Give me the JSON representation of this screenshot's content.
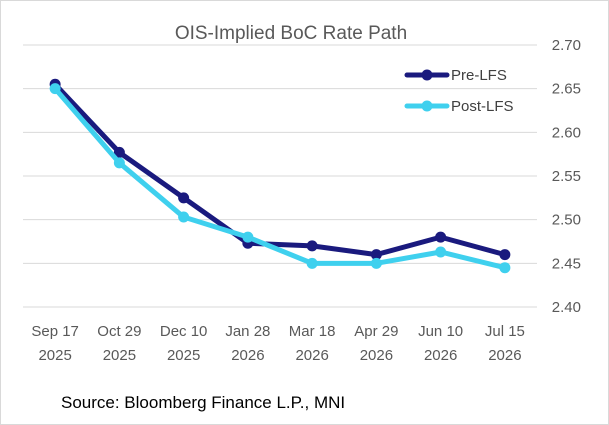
{
  "chart_data": {
    "type": "line",
    "title": "OIS-Implied BoC Rate Path",
    "xlabel": "",
    "ylabel": "",
    "categories": [
      [
        "Sep 17",
        "2025"
      ],
      [
        "Oct 29",
        "2025"
      ],
      [
        "Dec 10",
        "2025"
      ],
      [
        "Jan 28",
        "2026"
      ],
      [
        "Mar 18",
        "2026"
      ],
      [
        "Apr 29",
        "2026"
      ],
      [
        "Jun 10",
        "2026"
      ],
      [
        "Jul 15",
        "2026"
      ]
    ],
    "ylim": [
      2.4,
      2.7
    ],
    "yticks": [
      "2.40",
      "2.45",
      "2.50",
      "2.55",
      "2.60",
      "2.65",
      "2.70"
    ],
    "y_axis_side": "right",
    "grid": "horizontal",
    "legend_position": "top-right",
    "series": [
      {
        "name": "Pre-LFS",
        "color": "#1a1a7e",
        "values": [
          2.655,
          2.577,
          2.525,
          2.473,
          2.47,
          2.46,
          2.48,
          2.46
        ]
      },
      {
        "name": "Post-LFS",
        "color": "#3fd0ee",
        "values": [
          2.65,
          2.565,
          2.503,
          2.48,
          2.45,
          2.45,
          2.463,
          2.445
        ]
      }
    ],
    "source": "Source: Bloomberg Finance L.P., MNI"
  }
}
